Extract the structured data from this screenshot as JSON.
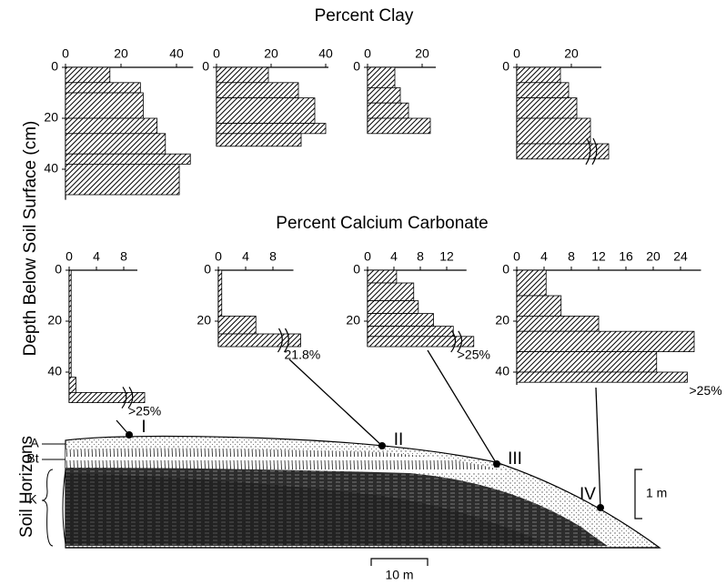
{
  "figure": {
    "clay_title": "Percent Clay",
    "carbonate_title": "Percent Calcium Carbonate",
    "depth_label": "Depth Below Soil Surface (cm)",
    "horizons_label": "Soil Horizons",
    "horizons": [
      "A",
      "Bt",
      "K"
    ],
    "sites": [
      "I",
      "II",
      "III",
      "IV"
    ],
    "scale_vertical": "1 m",
    "scale_horizontal": "10 m"
  },
  "chart_data": [
    {
      "type": "step",
      "xlim": [
        0,
        46
      ],
      "xticks": [
        0,
        20,
        40
      ],
      "ylim": [
        0,
        52
      ],
      "yticks": [
        0,
        20,
        40
      ],
      "depths": [
        0,
        6,
        10,
        20,
        26,
        34,
        38,
        50
      ],
      "values": [
        16,
        27,
        28,
        33,
        36,
        45,
        41
      ]
    },
    {
      "type": "step",
      "xlim": [
        0,
        41
      ],
      "xticks": [
        0,
        20,
        40
      ],
      "ylim": [
        0,
        31
      ],
      "yticks": [
        0
      ],
      "depths": [
        0,
        6,
        12,
        22,
        26,
        31
      ],
      "values": [
        19,
        30,
        36,
        40,
        31
      ]
    },
    {
      "type": "step",
      "xlim": [
        0,
        25
      ],
      "xticks": [
        0,
        20
      ],
      "ylim": [
        0,
        26
      ],
      "yticks": [
        0
      ],
      "depths": [
        0,
        8,
        14,
        20,
        26
      ],
      "values": [
        10,
        12,
        15,
        23
      ]
    },
    {
      "type": "step",
      "xlim": [
        0,
        31
      ],
      "xticks": [
        0,
        20
      ],
      "ylim": [
        0,
        36
      ],
      "yticks": [
        0
      ],
      "depths": [
        0,
        6,
        12,
        20,
        30,
        36
      ],
      "values": [
        16,
        19,
        22,
        27,
        33
      ]
    },
    {
      "type": "step",
      "xlim": [
        0,
        10
      ],
      "xticks": [
        0,
        4,
        8
      ],
      "ylim": [
        0,
        52
      ],
      "yticks": [
        0,
        20,
        40
      ],
      "depths": [
        0,
        42,
        48,
        52
      ],
      "values": [
        0.3,
        1,
        25
      ],
      "value_labels": [
        null,
        null,
        ">25%"
      ]
    },
    {
      "type": "step",
      "xlim": [
        0,
        11
      ],
      "xticks": [
        0,
        4,
        8
      ],
      "ylim": [
        0,
        30
      ],
      "yticks": [
        0,
        20
      ],
      "depths": [
        0,
        18,
        25,
        30
      ],
      "values": [
        0.5,
        5.5,
        21.8
      ],
      "value_labels": [
        null,
        null,
        "21.8%"
      ]
    },
    {
      "type": "step",
      "xlim": [
        0,
        15
      ],
      "xticks": [
        0,
        4,
        8,
        12
      ],
      "ylim": [
        0,
        30
      ],
      "yticks": [
        0,
        20
      ],
      "depths": [
        0,
        5,
        12,
        17,
        22,
        26,
        30
      ],
      "values": [
        4.4,
        7,
        7.7,
        10,
        13,
        25
      ],
      "value_labels": [
        null,
        null,
        null,
        null,
        null,
        ">25%"
      ]
    },
    {
      "type": "step",
      "xlim": [
        0,
        27
      ],
      "xticks": [
        0,
        4,
        8,
        12,
        16,
        20,
        24
      ],
      "ylim": [
        0,
        45
      ],
      "yticks": [
        0,
        20,
        40
      ],
      "depths": [
        0,
        10,
        18,
        24,
        32,
        40,
        44
      ],
      "values": [
        4.3,
        6.5,
        12,
        26,
        20.5,
        25
      ],
      "value_labels": [
        null,
        null,
        null,
        null,
        null,
        ">25%"
      ]
    }
  ]
}
